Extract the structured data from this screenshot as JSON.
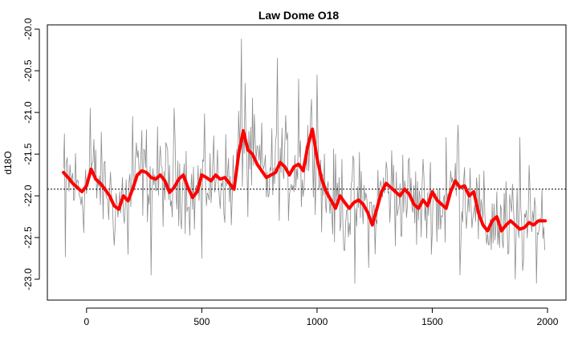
{
  "chart_data": {
    "type": "line",
    "title": "Law Dome O18",
    "xlabel": "",
    "ylabel": "d18O",
    "xlim": [
      -170,
      2080
    ],
    "ylim": [
      -23.25,
      -19.95
    ],
    "x_ticks": [
      0,
      500,
      1000,
      1500,
      2000
    ],
    "y_ticks": [
      -23.0,
      -22.5,
      -22.0,
      -21.5,
      -21.0,
      -20.5,
      -20.0
    ],
    "x_tick_labels": [
      "0",
      "500",
      "1000",
      "1500",
      "2000"
    ],
    "y_tick_labels": [
      "-23.0",
      "-22.5",
      "-22.0",
      "-21.5",
      "-21.0",
      "-20.5",
      "-20.0"
    ],
    "reference_line": {
      "y": -21.92,
      "style": "dotted",
      "color": "#000000"
    },
    "series": [
      {
        "role": "raw-annual",
        "color": "#8c8c8c",
        "x_start": -100,
        "x_end": 1990,
        "step": 4,
        "anchor_x": [
          -100,
          -80,
          -60,
          -40,
          -20,
          0,
          20,
          40,
          60,
          80,
          100,
          120,
          140,
          160,
          180,
          200,
          220,
          240,
          260,
          280,
          300,
          320,
          340,
          360,
          380,
          400,
          420,
          440,
          460,
          480,
          500,
          520,
          540,
          560,
          580,
          600,
          620,
          640,
          660,
          680,
          700,
          720,
          740,
          760,
          780,
          800,
          820,
          840,
          860,
          880,
          900,
          920,
          940,
          960,
          980,
          1000,
          1020,
          1040,
          1060,
          1080,
          1100,
          1120,
          1140,
          1160,
          1180,
          1200,
          1220,
          1240,
          1260,
          1280,
          1300,
          1320,
          1340,
          1360,
          1380,
          1400,
          1420,
          1440,
          1460,
          1480,
          1500,
          1520,
          1540,
          1560,
          1580,
          1600,
          1620,
          1640,
          1660,
          1680,
          1700,
          1720,
          1740,
          1760,
          1780,
          1800,
          1820,
          1840,
          1860,
          1880,
          1900,
          1920,
          1940,
          1960,
          1980,
          1990
        ],
        "anchor_y": [
          -21.72,
          -21.78,
          -21.85,
          -21.9,
          -21.95,
          -21.88,
          -21.7,
          -21.8,
          -21.85,
          -21.9,
          -22.0,
          -22.1,
          -22.15,
          -22.0,
          -22.05,
          -21.9,
          -21.75,
          -21.7,
          -21.72,
          -21.78,
          -21.8,
          -21.75,
          -21.82,
          -21.95,
          -21.9,
          -21.8,
          -21.75,
          -21.9,
          -22.0,
          -21.95,
          -21.75,
          -21.78,
          -21.82,
          -21.75,
          -21.8,
          -21.78,
          -21.85,
          -21.92,
          -21.5,
          -21.3,
          -21.45,
          -21.5,
          -21.62,
          -21.7,
          -21.78,
          -21.75,
          -21.72,
          -21.6,
          -21.65,
          -21.75,
          -21.65,
          -21.6,
          -21.7,
          -21.4,
          -21.25,
          -21.55,
          -21.8,
          -21.95,
          -22.05,
          -22.1,
          -22.0,
          -22.08,
          -22.15,
          -22.08,
          -22.05,
          -22.1,
          -22.2,
          -22.3,
          -22.15,
          -21.95,
          -21.85,
          -21.9,
          -21.95,
          -22.0,
          -21.92,
          -21.98,
          -22.1,
          -22.15,
          -22.05,
          -22.1,
          -21.95,
          -22.05,
          -22.1,
          -22.15,
          -21.95,
          -21.8,
          -21.9,
          -21.88,
          -22.0,
          -21.95,
          -22.2,
          -22.35,
          -22.4,
          -22.3,
          -22.25,
          -22.4,
          -22.35,
          -22.3,
          -22.35,
          -22.4,
          -22.38,
          -22.32,
          -22.35,
          -22.3,
          -22.3,
          -22.3
        ],
        "noise_amplitude": 0.28,
        "spikes": [
          {
            "x": -92,
            "y": -22.73
          },
          {
            "x": -82,
            "y": -21.1
          },
          {
            "x": 16,
            "y": -20.95
          },
          {
            "x": 180,
            "y": -22.7
          },
          {
            "x": 200,
            "y": -21.05
          },
          {
            "x": 280,
            "y": -22.95
          },
          {
            "x": 380,
            "y": -20.95
          },
          {
            "x": 500,
            "y": -22.75
          },
          {
            "x": 672,
            "y": -20.12
          },
          {
            "x": 688,
            "y": -20.65
          },
          {
            "x": 700,
            "y": -22.25
          },
          {
            "x": 828,
            "y": -20.35
          },
          {
            "x": 920,
            "y": -20.6
          },
          {
            "x": 1000,
            "y": -20.55
          },
          {
            "x": 1116,
            "y": -22.65
          },
          {
            "x": 1164,
            "y": -23.05
          },
          {
            "x": 1340,
            "y": -22.6
          },
          {
            "x": 1520,
            "y": -22.55
          },
          {
            "x": 1560,
            "y": -21.3
          },
          {
            "x": 1612,
            "y": -21.15
          },
          {
            "x": 1620,
            "y": -22.95
          },
          {
            "x": 1828,
            "y": -22.7
          },
          {
            "x": 1860,
            "y": -23.0
          },
          {
            "x": 1880,
            "y": -21.3
          }
        ]
      },
      {
        "role": "smoothed",
        "color": "#ff0000",
        "x": [
          -100,
          -80,
          -60,
          -40,
          -20,
          0,
          20,
          40,
          60,
          80,
          100,
          120,
          140,
          160,
          180,
          200,
          220,
          240,
          260,
          280,
          300,
          320,
          340,
          360,
          380,
          400,
          420,
          440,
          460,
          480,
          500,
          520,
          540,
          560,
          580,
          600,
          620,
          640,
          660,
          680,
          700,
          720,
          740,
          760,
          780,
          800,
          820,
          840,
          860,
          880,
          900,
          920,
          940,
          960,
          980,
          1000,
          1020,
          1040,
          1060,
          1080,
          1100,
          1120,
          1140,
          1160,
          1180,
          1200,
          1220,
          1240,
          1260,
          1280,
          1300,
          1320,
          1340,
          1360,
          1380,
          1400,
          1420,
          1440,
          1460,
          1480,
          1500,
          1520,
          1540,
          1560,
          1580,
          1600,
          1620,
          1640,
          1660,
          1680,
          1700,
          1720,
          1740,
          1760,
          1780,
          1800,
          1820,
          1840,
          1860,
          1880,
          1900,
          1920,
          1940,
          1960,
          1980,
          1990
        ],
        "y": [
          -21.72,
          -21.78,
          -21.85,
          -21.9,
          -21.95,
          -21.88,
          -21.68,
          -21.8,
          -21.85,
          -21.92,
          -22.0,
          -22.12,
          -22.16,
          -22.0,
          -22.06,
          -21.92,
          -21.75,
          -21.7,
          -21.72,
          -21.78,
          -21.8,
          -21.75,
          -21.82,
          -21.96,
          -21.9,
          -21.8,
          -21.75,
          -21.9,
          -22.02,
          -21.95,
          -21.75,
          -21.78,
          -21.82,
          -21.75,
          -21.8,
          -21.78,
          -21.85,
          -21.92,
          -21.5,
          -21.22,
          -21.45,
          -21.5,
          -21.62,
          -21.7,
          -21.78,
          -21.75,
          -21.72,
          -21.6,
          -21.65,
          -21.75,
          -21.65,
          -21.62,
          -21.7,
          -21.4,
          -21.2,
          -21.55,
          -21.8,
          -21.95,
          -22.05,
          -22.15,
          -22.0,
          -22.08,
          -22.15,
          -22.08,
          -22.05,
          -22.1,
          -22.2,
          -22.35,
          -22.15,
          -21.95,
          -21.85,
          -21.9,
          -21.95,
          -22.0,
          -21.92,
          -21.98,
          -22.1,
          -22.15,
          -22.05,
          -22.12,
          -21.95,
          -22.05,
          -22.1,
          -22.15,
          -21.95,
          -21.82,
          -21.9,
          -21.88,
          -22.0,
          -21.95,
          -22.2,
          -22.35,
          -22.42,
          -22.3,
          -22.25,
          -22.42,
          -22.35,
          -22.3,
          -22.35,
          -22.4,
          -22.38,
          -22.32,
          -22.35,
          -22.3,
          -22.3,
          -22.3
        ]
      }
    ]
  }
}
